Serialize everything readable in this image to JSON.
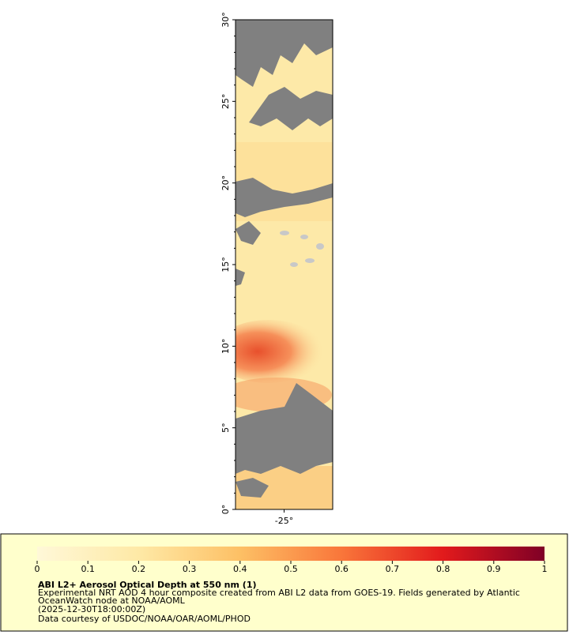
{
  "chart_data": {
    "type": "map",
    "xlim": [
      -28,
      -22
    ],
    "xticks": [
      {
        "value": -25,
        "label": "-25°"
      }
    ],
    "ylim": [
      0,
      30
    ],
    "yticks": [
      {
        "value": 0,
        "label": "0°"
      },
      {
        "value": 5,
        "label": "5°"
      },
      {
        "value": 10,
        "label": "10°"
      },
      {
        "value": 15,
        "label": "15°"
      },
      {
        "value": 20,
        "label": "20°"
      },
      {
        "value": 25,
        "label": "25°"
      },
      {
        "value": 30,
        "label": "30°"
      }
    ],
    "colorbar": {
      "lim": [
        0,
        1
      ],
      "ticks": [
        0,
        0.1,
        0.2,
        0.3,
        0.4,
        0.5,
        0.6,
        0.7,
        0.8,
        0.9,
        1
      ]
    },
    "title": "ABI L2+ Aerosol Optical Depth at 550 nm (1)",
    "description": [
      "Experimental NRT AOD 4 hour composite created from ABI L2 data from GOES-19. Fields generated by Atlantic",
      "OceanWatch node at NOAA/AOML"
    ],
    "time": "(2025-12-30T18:00:00Z)",
    "credit": "Data courtesy of USDOC/NOAA/OAR/AOML/PHOD"
  }
}
